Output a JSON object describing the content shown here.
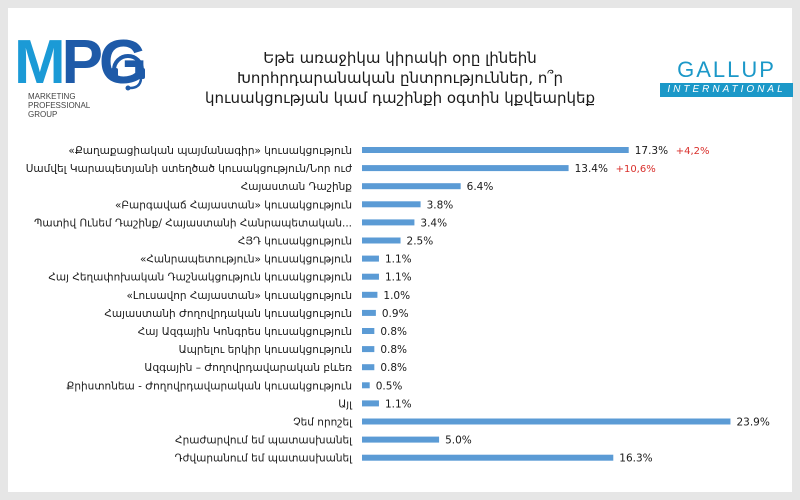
{
  "title_lines": [
    "Եթե առաջիկա կիրակի օրը լինեին",
    "Խորհրդարանական ընտրություններ, ո՞ր",
    "կուսակցության կամ դաշինքի օգտին կքվեարկեք"
  ],
  "logos": {
    "mpg": {
      "letters": [
        "M",
        "P",
        "G"
      ],
      "subtitle": [
        "Marketing",
        "Professional",
        "Group"
      ]
    },
    "gallup": {
      "name": "GALLUP",
      "tagline": "INTERNATIONAL"
    }
  },
  "colors": {
    "bar": "#5b9bd5",
    "change": "#d9302c",
    "gallup": "#1b98c8",
    "mpg_light": "#1b9ad6",
    "mpg_dark": "#1e5aa8"
  },
  "chart_data": {
    "type": "bar",
    "orientation": "horizontal",
    "title": "Եթե առաջիկա կիրակի օրը լինեին Խորհրդարանական ընտրություններ, ո՞ր կուսակցության կամ դաշինքի օգտին կքվեարկեք",
    "xlabel": "",
    "ylabel": "",
    "unit": "%",
    "xlim": [
      0,
      24
    ],
    "grid": false,
    "categories": [
      "«Քաղաքացիական պայմանագիր» կուսակցություն",
      "Սամվել Կարապետյանի ստեղծած կուսակցություն/Նոր ուժ",
      "Հայաստան Դաշինք",
      "«Բարգավաճ Հայաստան» կուսակցություն",
      "Պատիվ Ունեմ Դաշինք/ Հայաստանի Հանրապետական...",
      "ՀՅԴ կուսակցություն",
      "«Հանրապետություն» կուսակցություն",
      "Հայ Հեղափոխական Դաշնակցություն կուսակցություն",
      "«Լուսավոր Հայաստան» կուսակցություն",
      "Հայաստանի Ժողովրդական կուսակցություն",
      "Հայ Ազգային Կոնգրես կուսակցություն",
      "Ապրելու երկիր կուսակցություն",
      "Ազգային – Ժողովրդավարական բևեռ",
      "Քրիստոնեա - Ժողովրդավարական կուսակցություն",
      "Այլ",
      "Չեմ որոշել",
      "Հրաժարվում եմ պատասխանել",
      "Դժվարանում եմ պատասխանել"
    ],
    "values": [
      17.3,
      13.4,
      6.4,
      3.8,
      3.4,
      2.5,
      1.1,
      1.1,
      1.0,
      0.9,
      0.8,
      0.8,
      0.8,
      0.5,
      1.1,
      23.9,
      5.0,
      16.3
    ],
    "value_labels": [
      "17.3%",
      "13.4%",
      "6.4%",
      "3.8%",
      "3.4%",
      "2.5%",
      "1.1%",
      "1.1%",
      "1.0%",
      "0.9%",
      "0.8%",
      "0.8%",
      "0.8%",
      "0.5%",
      "1.1%",
      "23.9%",
      "5.0%",
      "16.3%"
    ],
    "annotations": [
      {
        "category_index": 0,
        "text": "+4,2%"
      },
      {
        "category_index": 1,
        "text": "+10,6%"
      }
    ]
  }
}
